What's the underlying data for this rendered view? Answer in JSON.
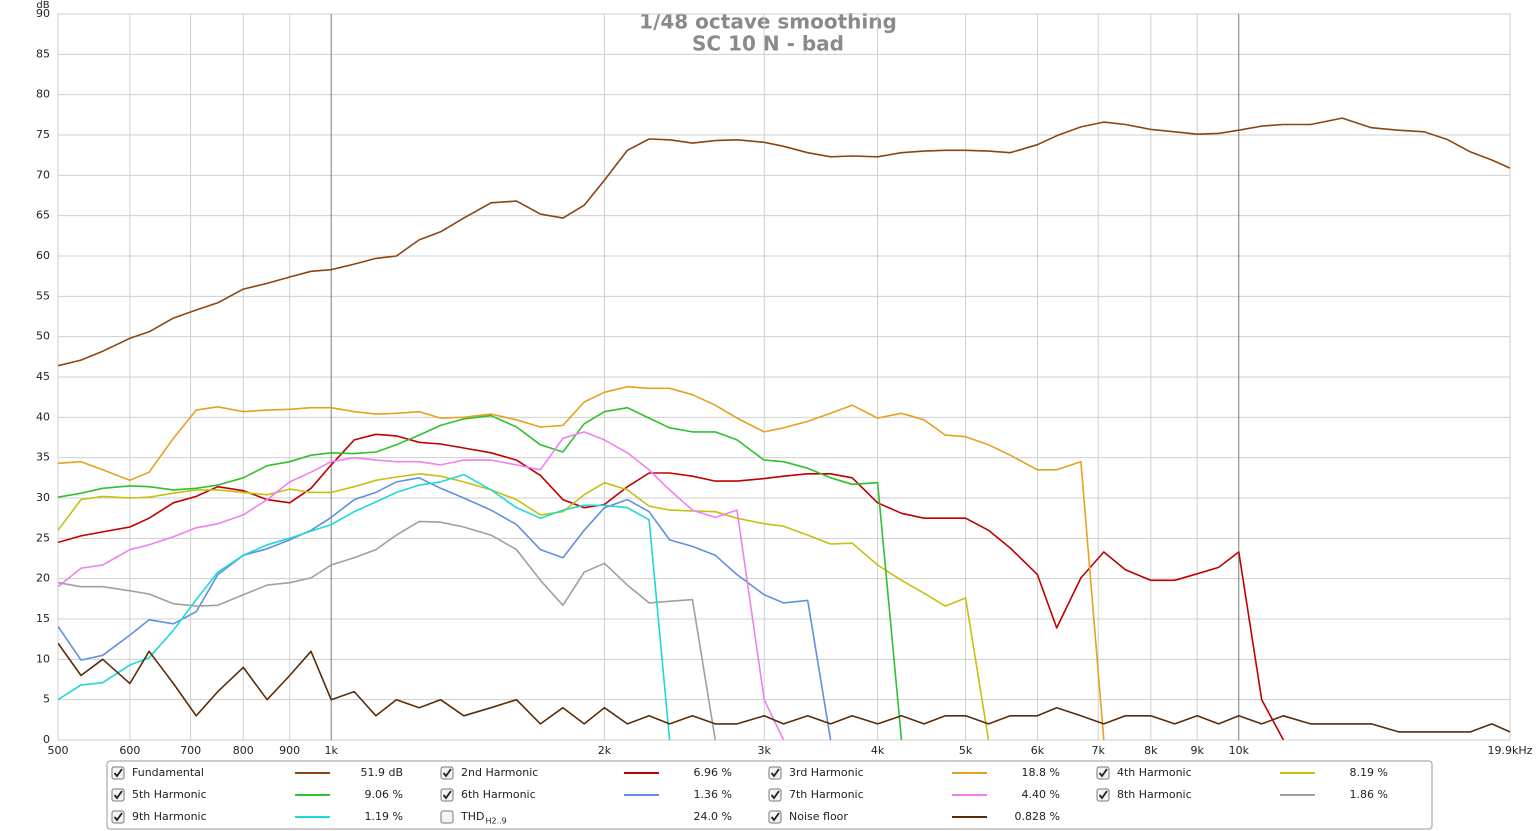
{
  "chart_data": {
    "type": "line",
    "title": "1/48 octave smoothing",
    "subtitle": "SC 10 N - bad",
    "y_label": "dB",
    "log_x": true,
    "grid": true,
    "xlim": [
      500,
      19900
    ],
    "ylim": [
      0,
      90
    ],
    "xticks": [
      500,
      600,
      700,
      800,
      900,
      {
        "value": 1000,
        "label": "1k"
      },
      {
        "value": 2000,
        "label": "2k"
      },
      {
        "value": 3000,
        "label": "3k"
      },
      {
        "value": 4000,
        "label": "4k"
      },
      {
        "value": 5000,
        "label": "5k"
      },
      {
        "value": 6000,
        "label": "6k"
      },
      {
        "value": 7000,
        "label": "7k"
      },
      {
        "value": 8000,
        "label": "8k"
      },
      {
        "value": 9000,
        "label": "9k"
      },
      {
        "value": 10000,
        "label": "10k"
      },
      {
        "value": 19900,
        "label": "19.9kHz"
      }
    ],
    "yticks": [
      0,
      5,
      10,
      15,
      20,
      25,
      30,
      35,
      40,
      45,
      50,
      55,
      60,
      65,
      70,
      75,
      80,
      85,
      90
    ],
    "x": [
      500,
      530,
      560,
      600,
      630,
      670,
      710,
      750,
      800,
      850,
      900,
      950,
      1000,
      1060,
      1120,
      1180,
      1250,
      1320,
      1400,
      1500,
      1600,
      1700,
      1800,
      1900,
      2000,
      2120,
      2240,
      2360,
      2500,
      2650,
      2800,
      3000,
      3150,
      3350,
      3550,
      3750,
      4000,
      4250,
      4500,
      4750,
      5000,
      5300,
      5600,
      6000,
      6300,
      6700,
      7100,
      7500,
      8000,
      8500,
      9000,
      9500,
      10000,
      10600,
      11200,
      12000,
      13000,
      14000,
      15000,
      16000,
      17000,
      18000,
      19000,
      19900
    ],
    "series": [
      {
        "name": "Fundamental",
        "color": "#8b4513",
        "checked": true,
        "legend_value": "51.9 dB",
        "values": [
          46.4,
          47.1,
          48.2,
          49.8,
          50.6,
          52.3,
          53.3,
          54.2,
          55.9,
          56.6,
          57.4,
          58.1,
          58.3,
          59.0,
          59.7,
          60.0,
          62.0,
          63.0,
          64.7,
          66.6,
          66.8,
          65.2,
          64.7,
          66.3,
          69.4,
          73.1,
          74.5,
          74.4,
          74.0,
          74.3,
          74.4,
          74.1,
          73.6,
          72.8,
          72.3,
          72.4,
          72.3,
          72.8,
          73.0,
          73.1,
          73.1,
          73.0,
          72.8,
          73.8,
          74.9,
          76.0,
          76.6,
          76.3,
          75.7,
          75.4,
          75.1,
          75.2,
          75.6,
          76.1,
          76.3,
          76.3,
          77.1,
          75.9,
          75.6,
          75.4,
          74.4,
          72.9,
          71.9,
          70.9
        ]
      },
      {
        "name": "2nd Harmonic",
        "color": "#c00000",
        "checked": true,
        "legend_value": "6.96 %",
        "values": [
          24.5,
          25.3,
          25.8,
          26.4,
          27.5,
          29.4,
          30.2,
          31.4,
          30.9,
          29.8,
          29.4,
          31.2,
          34.1,
          37.2,
          37.9,
          37.7,
          36.9,
          36.7,
          36.2,
          35.6,
          34.7,
          32.8,
          29.8,
          28.8,
          29.2,
          31.4,
          33.1,
          33.1,
          32.7,
          32.1,
          32.1,
          32.4,
          32.7,
          33.0,
          33.0,
          32.5,
          29.4,
          28.1,
          27.5,
          27.5,
          27.5,
          26.0,
          23.8,
          20.5,
          13.9,
          20.1,
          23.3,
          21.1,
          19.8,
          19.8,
          20.6,
          21.4,
          23.3,
          5,
          0,
          null,
          null,
          null,
          null,
          null,
          null,
          null,
          null,
          null
        ]
      },
      {
        "name": "3rd Harmonic",
        "color": "#e8a020",
        "checked": true,
        "legend_value": "18.8 %",
        "values": [
          34.3,
          34.5,
          33.5,
          32.2,
          33.2,
          37.4,
          40.9,
          41.3,
          40.7,
          40.9,
          41.0,
          41.2,
          41.2,
          40.7,
          40.4,
          40.5,
          40.7,
          39.9,
          40.0,
          40.4,
          39.7,
          38.8,
          39.0,
          41.9,
          43.1,
          43.8,
          43.6,
          43.6,
          42.8,
          41.5,
          39.9,
          38.2,
          38.7,
          39.5,
          40.5,
          41.5,
          39.9,
          40.5,
          39.7,
          37.8,
          37.6,
          36.6,
          35.3,
          33.5,
          33.5,
          34.5,
          0,
          null,
          null,
          null,
          null,
          null,
          null,
          null,
          null,
          null,
          null,
          null,
          null,
          null,
          null,
          null,
          null,
          null
        ]
      },
      {
        "name": "4th Harmonic",
        "color": "#c8c010",
        "checked": true,
        "legend_value": "8.19 %",
        "values": [
          26.0,
          29.8,
          30.2,
          30.0,
          30.1,
          30.6,
          31.0,
          31.0,
          30.7,
          30.4,
          31.1,
          30.7,
          30.7,
          31.4,
          32.2,
          32.6,
          33.0,
          32.7,
          32.0,
          31.0,
          29.8,
          27.9,
          28.3,
          30.4,
          31.9,
          31.0,
          29.0,
          28.5,
          28.4,
          28.3,
          27.5,
          26.8,
          26.5,
          25.4,
          24.3,
          24.4,
          21.7,
          19.8,
          18.2,
          16.6,
          17.6,
          0,
          null,
          null,
          null,
          null,
          null,
          null,
          null,
          null,
          null,
          null,
          null,
          null,
          null,
          null,
          null,
          null,
          null,
          null,
          null,
          null,
          null,
          null
        ]
      },
      {
        "name": "5th Harmonic",
        "color": "#30c030",
        "checked": true,
        "legend_value": "9.06 %",
        "values": [
          30.1,
          30.6,
          31.2,
          31.5,
          31.4,
          31.0,
          31.2,
          31.6,
          32.5,
          34.0,
          34.5,
          35.3,
          35.6,
          35.5,
          35.7,
          36.6,
          37.8,
          39.0,
          39.8,
          40.2,
          38.8,
          36.6,
          35.7,
          39.2,
          40.7,
          41.2,
          39.9,
          38.7,
          38.2,
          38.2,
          37.2,
          34.7,
          34.5,
          33.7,
          32.5,
          31.7,
          31.9,
          0,
          null,
          null,
          null,
          null,
          null,
          null,
          null,
          null,
          null,
          null,
          null,
          null,
          null,
          null,
          null,
          null,
          null,
          null,
          null,
          null,
          null,
          null,
          null,
          null,
          null,
          null
        ]
      },
      {
        "name": "6th Harmonic",
        "color": "#6090e0",
        "checked": true,
        "legend_value": "1.36 %",
        "values": [
          14.1,
          9.9,
          10.5,
          13.0,
          14.9,
          14.4,
          15.9,
          20.5,
          22.9,
          23.7,
          24.8,
          26.0,
          27.6,
          29.8,
          30.7,
          32.0,
          32.5,
          31.2,
          30.0,
          28.5,
          26.7,
          23.6,
          22.6,
          26.0,
          28.8,
          29.8,
          28.3,
          24.8,
          24.0,
          22.9,
          20.5,
          18.0,
          17.0,
          17.3,
          0,
          null,
          null,
          null,
          null,
          null,
          null,
          null,
          null,
          null,
          null,
          null,
          null,
          null,
          null,
          null,
          null,
          null,
          null,
          null,
          null,
          null,
          null,
          null,
          null,
          null,
          null,
          null,
          null,
          null
        ]
      },
      {
        "name": "7th Harmonic",
        "color": "#f080f0",
        "checked": true,
        "legend_value": "4.40 %",
        "values": [
          19.0,
          21.3,
          21.7,
          23.6,
          24.2,
          25.2,
          26.3,
          26.8,
          27.9,
          29.8,
          32.0,
          33.2,
          34.5,
          35.0,
          34.7,
          34.5,
          34.5,
          34.1,
          34.7,
          34.7,
          34.1,
          33.5,
          37.4,
          38.2,
          37.2,
          35.6,
          33.5,
          31.0,
          28.5,
          27.6,
          28.5,
          5,
          0,
          null,
          null,
          null,
          null,
          null,
          null,
          null,
          null,
          null,
          null,
          null,
          null,
          null,
          null,
          null,
          null,
          null,
          null,
          null,
          null,
          null,
          null,
          null,
          null,
          null,
          null,
          null,
          null,
          null,
          null,
          null
        ]
      },
      {
        "name": "8th Harmonic",
        "color": "#a0a0a0",
        "checked": true,
        "legend_value": "1.86 %",
        "values": [
          19.5,
          19.0,
          19.0,
          18.5,
          18.1,
          16.9,
          16.6,
          16.7,
          18.0,
          19.2,
          19.5,
          20.1,
          21.7,
          22.6,
          23.6,
          25.4,
          27.1,
          27.0,
          26.4,
          25.4,
          23.6,
          19.8,
          16.7,
          20.8,
          21.9,
          19.2,
          17.0,
          17.2,
          17.4,
          0,
          null,
          null,
          null,
          null,
          null,
          null,
          null,
          null,
          null,
          null,
          null,
          null,
          null,
          null,
          null,
          null,
          null,
          null,
          null,
          null,
          null,
          null,
          null,
          null,
          null,
          null,
          null,
          null,
          null,
          null,
          null,
          null,
          null,
          null
        ]
      },
      {
        "name": "9th Harmonic",
        "color": "#20d8d8",
        "checked": true,
        "legend_value": "1.19 %",
        "values": [
          5.0,
          6.8,
          7.1,
          9.3,
          10.2,
          13.6,
          17.4,
          20.8,
          22.9,
          24.2,
          25.0,
          25.9,
          26.7,
          28.3,
          29.5,
          30.7,
          31.6,
          32.0,
          32.9,
          31.0,
          28.8,
          27.5,
          28.5,
          29.1,
          29.1,
          28.8,
          27.3,
          0,
          null,
          null,
          null,
          null,
          null,
          null,
          null,
          null,
          null,
          null,
          null,
          null,
          null,
          null,
          null,
          null,
          null,
          null,
          null,
          null,
          null,
          null,
          null,
          null,
          null,
          null,
          null,
          null,
          null,
          null,
          null,
          null,
          null,
          null,
          null,
          null
        ]
      },
      {
        "name": "Noise floor",
        "color": "#5a2d0a",
        "checked": true,
        "legend_value": "0.828 %",
        "values": [
          12,
          8,
          10,
          7,
          11,
          7,
          3,
          6,
          9,
          5,
          8,
          11,
          5,
          6,
          3,
          5,
          4,
          5,
          3,
          4,
          5,
          2,
          4,
          2,
          4,
          2,
          3,
          2,
          3,
          2,
          2,
          3,
          2,
          3,
          2,
          3,
          2,
          3,
          2,
          3,
          3,
          2,
          3,
          3,
          4,
          3,
          2,
          3,
          3,
          2,
          3,
          2,
          3,
          2,
          3,
          2,
          2,
          2,
          1,
          1,
          1,
          1,
          2,
          1
        ]
      }
    ],
    "thd": {
      "name": "THD",
      "name_sub": "H2..9",
      "checked": false,
      "legend_value": "24.0 %"
    }
  }
}
